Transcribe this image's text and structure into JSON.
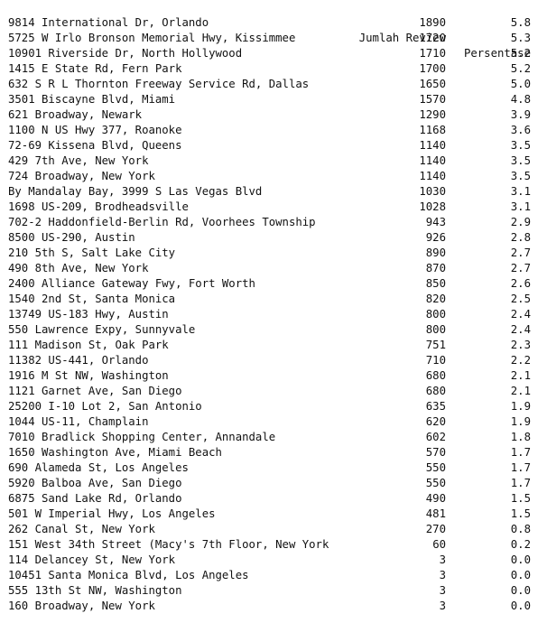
{
  "header": {
    "address": "",
    "review_count": "Jumlah Review",
    "percentage": "Persentase"
  },
  "rows": [
    {
      "address": "9814 International Dr, Orlando",
      "review_count": "1890",
      "percentage": "5.8"
    },
    {
      "address": "5725 W Irlo Bronson Memorial Hwy, Kissimmee",
      "review_count": "1720",
      "percentage": "5.3"
    },
    {
      "address": "10901 Riverside Dr, North Hollywood",
      "review_count": "1710",
      "percentage": "5.2"
    },
    {
      "address": "1415 E State Rd, Fern Park",
      "review_count": "1700",
      "percentage": "5.2"
    },
    {
      "address": "632 S R L Thornton Freeway Service Rd, Dallas",
      "review_count": "1650",
      "percentage": "5.0"
    },
    {
      "address": "3501 Biscayne Blvd, Miami",
      "review_count": "1570",
      "percentage": "4.8"
    },
    {
      "address": "621 Broadway, Newark",
      "review_count": "1290",
      "percentage": "3.9"
    },
    {
      "address": "1100 N US Hwy 377, Roanoke",
      "review_count": "1168",
      "percentage": "3.6"
    },
    {
      "address": "72-69 Kissena Blvd, Queens",
      "review_count": "1140",
      "percentage": "3.5"
    },
    {
      "address": "429 7th Ave, New York",
      "review_count": "1140",
      "percentage": "3.5"
    },
    {
      "address": "724 Broadway, New York",
      "review_count": "1140",
      "percentage": "3.5"
    },
    {
      "address": "By Mandalay Bay, 3999 S Las Vegas Blvd",
      "review_count": "1030",
      "percentage": "3.1"
    },
    {
      "address": "1698 US-209, Brodheadsville",
      "review_count": "1028",
      "percentage": "3.1"
    },
    {
      "address": "702-2 Haddonfield-Berlin Rd, Voorhees Township",
      "review_count": "943",
      "percentage": "2.9"
    },
    {
      "address": "8500 US-290, Austin",
      "review_count": "926",
      "percentage": "2.8"
    },
    {
      "address": "210 5th S, Salt Lake City",
      "review_count": "890",
      "percentage": "2.7"
    },
    {
      "address": "490 8th Ave, New York",
      "review_count": "870",
      "percentage": "2.7"
    },
    {
      "address": "2400 Alliance Gateway Fwy, Fort Worth",
      "review_count": "850",
      "percentage": "2.6"
    },
    {
      "address": "1540 2nd St, Santa Monica",
      "review_count": "820",
      "percentage": "2.5"
    },
    {
      "address": "13749 US-183 Hwy, Austin",
      "review_count": "800",
      "percentage": "2.4"
    },
    {
      "address": "550 Lawrence Expy, Sunnyvale",
      "review_count": "800",
      "percentage": "2.4"
    },
    {
      "address": "111 Madison St, Oak Park",
      "review_count": "751",
      "percentage": "2.3"
    },
    {
      "address": "11382 US-441, Orlando",
      "review_count": "710",
      "percentage": "2.2"
    },
    {
      "address": "1916 M St NW, Washington",
      "review_count": "680",
      "percentage": "2.1"
    },
    {
      "address": "1121 Garnet Ave, San Diego",
      "review_count": "680",
      "percentage": "2.1"
    },
    {
      "address": "25200 I-10 Lot 2, San Antonio",
      "review_count": "635",
      "percentage": "1.9"
    },
    {
      "address": "1044 US-11, Champlain",
      "review_count": "620",
      "percentage": "1.9"
    },
    {
      "address": "7010 Bradlick Shopping Center, Annandale",
      "review_count": "602",
      "percentage": "1.8"
    },
    {
      "address": "1650 Washington Ave, Miami Beach",
      "review_count": "570",
      "percentage": "1.7"
    },
    {
      "address": "690 Alameda St, Los Angeles",
      "review_count": "550",
      "percentage": "1.7"
    },
    {
      "address": "5920 Balboa Ave, San Diego",
      "review_count": "550",
      "percentage": "1.7"
    },
    {
      "address": "6875 Sand Lake Rd, Orlando",
      "review_count": "490",
      "percentage": "1.5"
    },
    {
      "address": "501 W Imperial Hwy, Los Angeles",
      "review_count": "481",
      "percentage": "1.5"
    },
    {
      "address": "262 Canal St, New York",
      "review_count": "270",
      "percentage": "0.8"
    },
    {
      "address": "151 West 34th Street (Macy's 7th Floor, New York",
      "review_count": "60",
      "percentage": "0.2"
    },
    {
      "address": "114 Delancey St, New York",
      "review_count": "3",
      "percentage": "0.0"
    },
    {
      "address": "10451 Santa Monica Blvd, Los Angeles",
      "review_count": "3",
      "percentage": "0.0"
    },
    {
      "address": "555 13th St NW, Washington",
      "review_count": "3",
      "percentage": "0.0"
    },
    {
      "address": "160 Broadway, New York",
      "review_count": "3",
      "percentage": "0.0"
    }
  ]
}
